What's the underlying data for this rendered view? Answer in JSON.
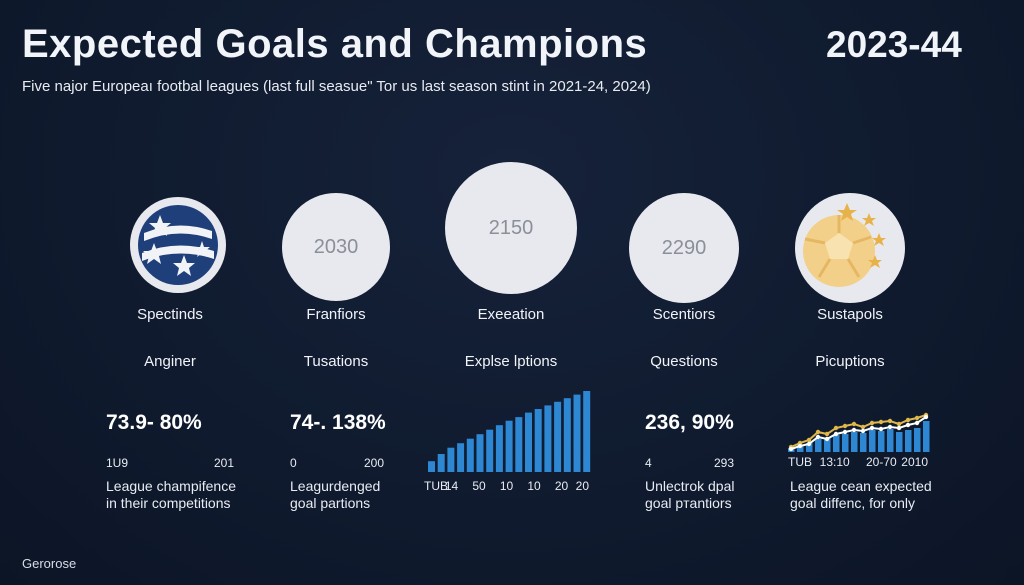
{
  "header": {
    "title": "Expected Goals and Champions",
    "season": "2023-44",
    "subtitle": "Five najor Europeaı footbal leagues (last full seasue\" Tor us last season stint in 2021-24, 2024)"
  },
  "footer": {
    "source": "Gerorose"
  },
  "columns": [
    {
      "circle_value": "",
      "name": "Spectinds",
      "category": "Anginer",
      "metric": "73.9- 80%",
      "range_min": "1U9",
      "range_max": "201",
      "caption_1": "League champifence",
      "caption_2": "in their competitions"
    },
    {
      "circle_value": "2030",
      "name": "Franfiors",
      "category": "Tusations",
      "metric": "74-. 138%",
      "range_min": "0",
      "range_max": "200",
      "caption_1": "Leagurdenged",
      "caption_2": "goal partions"
    },
    {
      "circle_value": "2150",
      "name": "Exeeation",
      "category": "Explse lptions"
    },
    {
      "circle_value": "2290",
      "name": "Scentiors",
      "category": "Questions",
      "metric": "236, 90%",
      "range_min": "4",
      "range_max": "293",
      "caption_1": "Unlectrok dpal",
      "caption_2": "goal pтantiors"
    },
    {
      "circle_value": "",
      "name": "Sustapols",
      "category": "Picuptions",
      "caption_1": "League cean expected",
      "caption_2": "goal diffenc, for only"
    }
  ],
  "colors": {
    "bar": "#2d87d2",
    "bar_light": "#3a9be0",
    "line_gold": "#e0b84a",
    "line_white": "#ffffff"
  },
  "chart_data": [
    {
      "type": "bar",
      "title": "Explse lptions",
      "values": [
        12,
        20,
        27,
        32,
        37,
        42,
        47,
        52,
        57,
        61,
        66,
        70,
        74,
        78,
        82,
        86,
        90
      ],
      "tick_labels": [
        "TUB",
        "14",
        "50",
        "10",
        "10",
        "20",
        "20"
      ],
      "ylim": [
        0,
        100
      ]
    },
    {
      "type": "bar",
      "title": "Picuptions",
      "values": [
        8,
        14,
        18,
        26,
        28,
        34,
        36,
        40,
        38,
        44,
        42,
        46,
        40,
        44,
        48,
        62
      ],
      "series": [
        {
          "name": "gold-line",
          "values": [
            10,
            18,
            24,
            40,
            36,
            48,
            52,
            56,
            50,
            58,
            60,
            62,
            56,
            64,
            68,
            74
          ]
        },
        {
          "name": "white-line",
          "values": [
            6,
            12,
            16,
            30,
            26,
            36,
            40,
            44,
            42,
            48,
            46,
            50,
            48,
            54,
            58,
            70
          ]
        }
      ],
      "tick_labels": [
        "TUB",
        "13:10",
        "20-70",
        "2010"
      ],
      "ylim": [
        0,
        100
      ]
    }
  ]
}
